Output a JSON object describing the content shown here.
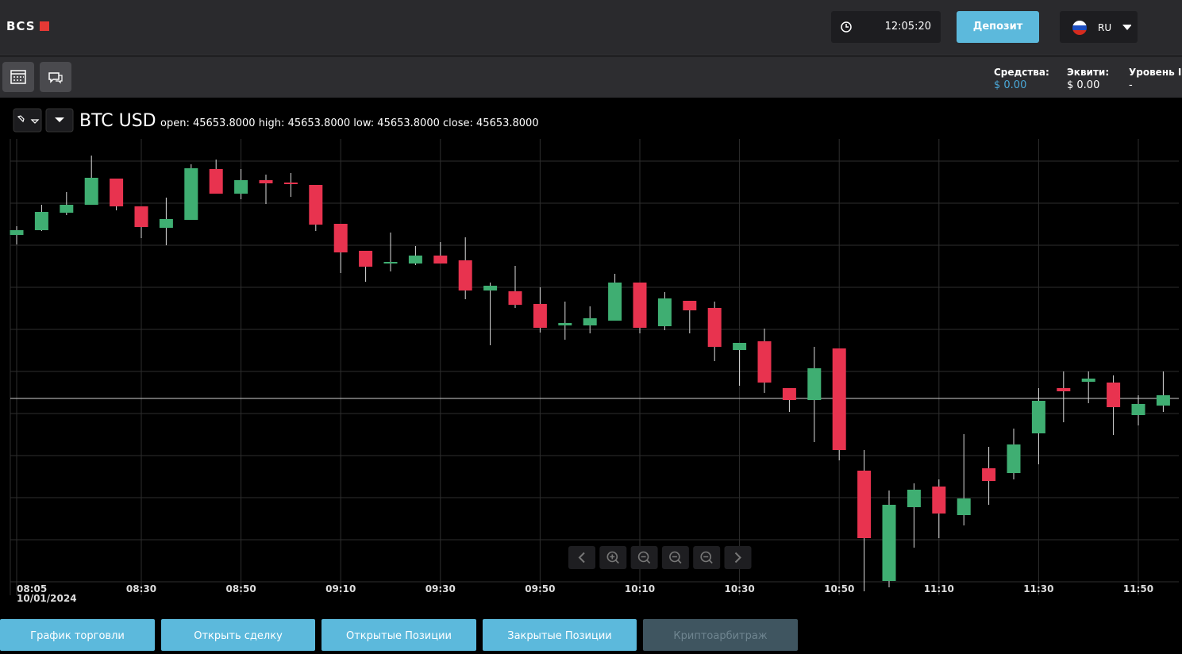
{
  "header": {
    "logo": "BCS",
    "time": "12:05:20",
    "deposit_button": "Депозит",
    "language": "RU"
  },
  "account": [
    {
      "label": "Средства:",
      "value": "$ 0.00"
    },
    {
      "label": "Эквити:",
      "value": "$ 0.00"
    },
    {
      "label": "Уровень I",
      "value": "-"
    }
  ],
  "chart_header": {
    "symbol": "BTC USD",
    "ohlc": [
      {
        "label": "open:",
        "value": "45653.8000"
      },
      {
        "label": "high:",
        "value": "45653.8000"
      },
      {
        "label": "low:",
        "value": "45653.8000"
      },
      {
        "label": "close:",
        "value": "45653.8000"
      }
    ]
  },
  "chart_data": {
    "type": "candlestick",
    "categories": [
      "08:05",
      null,
      null,
      null,
      null,
      "08:30",
      null,
      null,
      null,
      "08:50",
      null,
      null,
      null,
      "09:10",
      null,
      null,
      null,
      "09:30",
      null,
      null,
      null,
      "09:50",
      null,
      null,
      null,
      "10:10",
      null,
      null,
      null,
      "10:30",
      null,
      null,
      null,
      "10:50",
      null,
      null,
      null,
      "11:10",
      null,
      null,
      null,
      "11:30",
      null,
      null,
      null,
      "11:50",
      null
    ],
    "date_label": "10/01/2024",
    "open": [
      45860,
      45866,
      45888,
      45898,
      45931,
      45896,
      45869,
      45879,
      45943,
      45912,
      45929,
      45926,
      45923,
      45874,
      45840,
      45824,
      45824,
      45834,
      45828,
      45790,
      45789,
      45773,
      45746,
      45746,
      45752,
      45800,
      45745,
      45777,
      45768,
      45715,
      45726,
      45667,
      45652,
      45717,
      45563,
      45424,
      45517,
      45543,
      45507,
      45566,
      45560,
      45610,
      45667,
      45675,
      45674,
      45633,
      45645
    ],
    "high": [
      45871,
      45898,
      45914,
      45960,
      45931,
      45896,
      45907,
      45949,
      45955,
      45943,
      45936,
      45938,
      45923,
      45874,
      45840,
      45863,
      45846,
      45851,
      45857,
      45800,
      45821,
      45794,
      45776,
      45770,
      45811,
      45800,
      45788,
      45777,
      45776,
      45724,
      45742,
      45667,
      45719,
      45717,
      45589,
      45538,
      45547,
      45552,
      45609,
      45593,
      45616,
      45667,
      45688,
      45688,
      45683,
      45658,
      45688
    ],
    "low": [
      45848,
      45865,
      45885,
      45898,
      45891,
      45856,
      45847,
      45879,
      45912,
      45905,
      45899,
      45908,
      45865,
      45812,
      45801,
      45814,
      45822,
      45824,
      45779,
      45721,
      45768,
      45737,
      45728,
      45736,
      45752,
      45736,
      45740,
      45736,
      45701,
      45670,
      45661,
      45637,
      45599,
      45576,
      45411,
      45416,
      45466,
      45478,
      45494,
      45520,
      45552,
      45571,
      45624,
      45648,
      45608,
      45620,
      45637
    ],
    "close": [
      45866,
      45889,
      45898,
      45932,
      45896,
      45870,
      45880,
      45944,
      45912,
      45929,
      45925,
      45924,
      45873,
      45838,
      45820,
      45826,
      45834,
      45824,
      45790,
      45796,
      45772,
      45743,
      45749,
      45755,
      45800,
      45743,
      45780,
      45765,
      45719,
      45724,
      45674,
      45652,
      45692,
      45589,
      45478,
      45520,
      45539,
      45509,
      45528,
      45550,
      45596,
      45651,
      45663,
      45679,
      45643,
      45647,
      45658
    ],
    "up_color": "#3fae72",
    "down_color": "#e8334f",
    "price_line": 45654,
    "ylim": [
      45406,
      45981
    ],
    "grid": true
  },
  "zoom_controls": 6,
  "bottom_tabs": [
    "График торговли",
    "Открыть сделку",
    "Открытые Позиции",
    "Закрытые Позиции",
    "Криптоарбитраж"
  ]
}
